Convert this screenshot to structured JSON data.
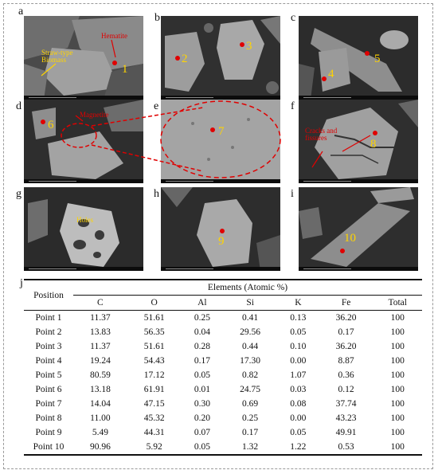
{
  "panels": [
    {
      "label": "a",
      "annotations": [
        "Hematite",
        "Straw-type\nBiomass"
      ],
      "numbers": [
        "1"
      ]
    },
    {
      "label": "b",
      "annotations": [],
      "numbers": [
        "2",
        "3"
      ]
    },
    {
      "label": "c",
      "annotations": [],
      "numbers": [
        "4",
        "5"
      ]
    },
    {
      "label": "d",
      "annotations": [
        "Magnetite"
      ],
      "numbers": [
        "6"
      ]
    },
    {
      "label": "e",
      "annotations": [],
      "numbers": [
        "7"
      ]
    },
    {
      "label": "f",
      "annotations": [
        "Cracks and\nfissures"
      ],
      "numbers": [
        "8"
      ]
    },
    {
      "label": "g",
      "annotations": [
        "Holes"
      ],
      "numbers": []
    },
    {
      "label": "h",
      "annotations": [],
      "numbers": [
        "9"
      ]
    },
    {
      "label": "i",
      "annotations": [],
      "numbers": [
        "10"
      ]
    }
  ],
  "table": {
    "label": "j",
    "position_header": "Position",
    "elements_header": "Elements (Atomic %)",
    "columns": [
      "C",
      "O",
      "Al",
      "Si",
      "K",
      "Fe",
      "Total"
    ],
    "rows": [
      {
        "position": "Point 1",
        "values": [
          "11.37",
          "51.61",
          "0.25",
          "0.41",
          "0.13",
          "36.20",
          "100"
        ]
      },
      {
        "position": "Point 2",
        "values": [
          "13.83",
          "56.35",
          "0.04",
          "29.56",
          "0.05",
          "0.17",
          "100"
        ]
      },
      {
        "position": "Point 3",
        "values": [
          "11.37",
          "51.61",
          "0.28",
          "0.44",
          "0.10",
          "36.20",
          "100"
        ]
      },
      {
        "position": "Point 4",
        "values": [
          "19.24",
          "54.43",
          "0.17",
          "17.30",
          "0.00",
          "8.87",
          "100"
        ]
      },
      {
        "position": "Point 5",
        "values": [
          "80.59",
          "17.12",
          "0.05",
          "0.82",
          "1.07",
          "0.36",
          "100"
        ]
      },
      {
        "position": "Point 6",
        "values": [
          "13.18",
          "61.91",
          "0.01",
          "24.75",
          "0.03",
          "0.12",
          "100"
        ]
      },
      {
        "position": "Point 7",
        "values": [
          "14.04",
          "47.15",
          "0.30",
          "0.69",
          "0.08",
          "37.74",
          "100"
        ]
      },
      {
        "position": "Point 8",
        "values": [
          "11.00",
          "45.32",
          "0.20",
          "0.25",
          "0.00",
          "43.23",
          "100"
        ]
      },
      {
        "position": "Point 9",
        "values": [
          "5.49",
          "44.31",
          "0.07",
          "0.17",
          "0.05",
          "49.91",
          "100"
        ]
      },
      {
        "position": "Point 10",
        "values": [
          "90.96",
          "5.92",
          "0.05",
          "1.32",
          "1.22",
          "0.53",
          "100"
        ]
      }
    ]
  },
  "colors": {
    "marker": "#e00000",
    "point_number": "#ffd400",
    "annotation_red": "#e00000",
    "annotation_yellow": "#ffd400"
  }
}
